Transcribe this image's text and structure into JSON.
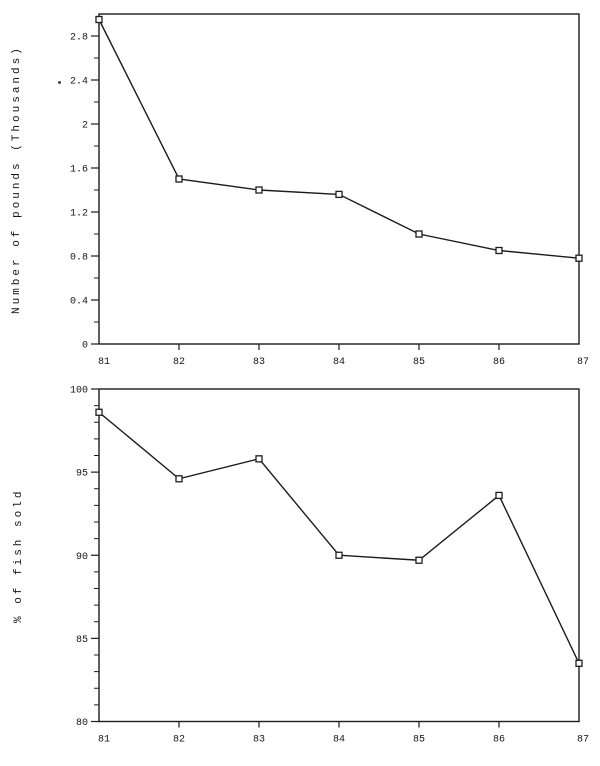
{
  "page": {
    "background": "#ffffff",
    "ink_color": "#1c1c1c"
  },
  "chart_data": [
    {
      "type": "line",
      "title": "",
      "xlabel": "",
      "ylabel": "Number of pounds (Thousands)",
      "x": [
        81,
        82,
        83,
        84,
        85,
        86,
        87
      ],
      "xtick_labels": [
        "81",
        "82",
        "83",
        "84",
        "85",
        "86",
        "87"
      ],
      "values": [
        2.95,
        1.5,
        1.4,
        1.36,
        1.0,
        0.85,
        0.78
      ],
      "ylim": [
        0,
        3
      ],
      "ytick_major": [
        0,
        0.4,
        0.8,
        1.2,
        1.6,
        2,
        2.4,
        2.8
      ],
      "ytick_labels": [
        "0",
        "0.4",
        "0.8",
        "1.2",
        "1.6",
        "2",
        "2.4",
        "2.8"
      ],
      "ytick_minor_step": 0.2,
      "grid": false,
      "legend": null,
      "marker": "open-square",
      "line_color": "#1c1c1c"
    },
    {
      "type": "line",
      "title": "",
      "xlabel": "",
      "ylabel": "% of fish sold",
      "x": [
        81,
        82,
        83,
        84,
        85,
        86,
        87
      ],
      "xtick_labels": [
        "81",
        "82",
        "83",
        "84",
        "85",
        "86",
        "87"
      ],
      "values": [
        98.6,
        94.6,
        95.8,
        90.0,
        89.7,
        93.6,
        83.5
      ],
      "ylim": [
        80,
        100
      ],
      "ytick_major": [
        80,
        85,
        90,
        95,
        100
      ],
      "ytick_labels": [
        "80",
        "85",
        "90",
        "95",
        "100"
      ],
      "ytick_minor_step": 1,
      "grid": false,
      "legend": null,
      "marker": "open-square",
      "line_color": "#1c1c1c"
    }
  ]
}
